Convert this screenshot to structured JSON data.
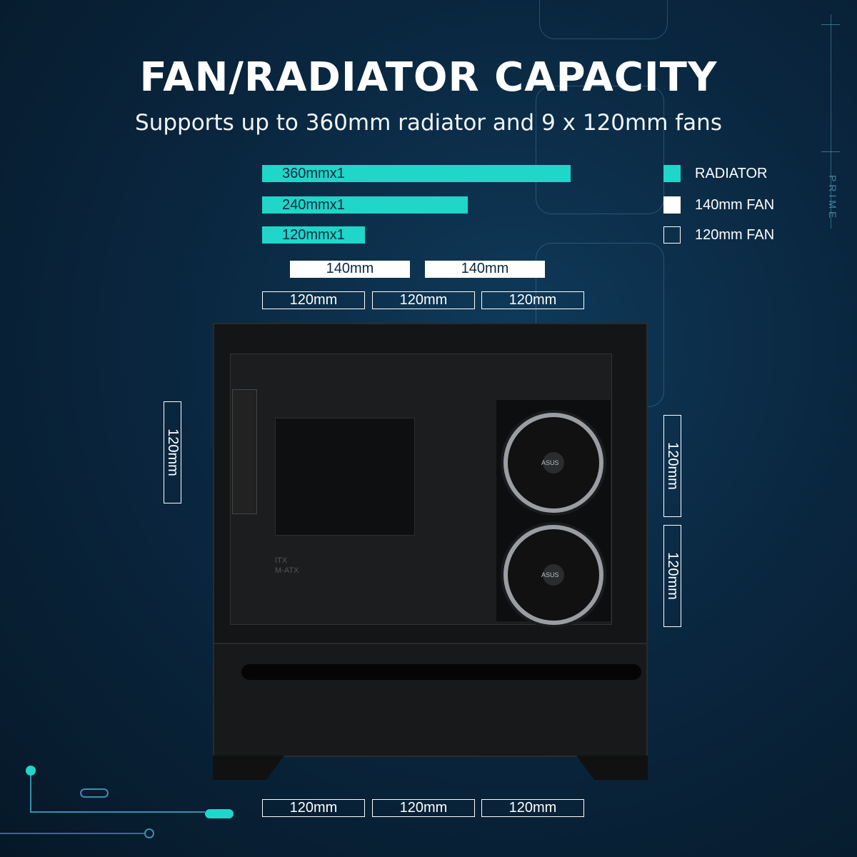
{
  "title": "FAN/RADIATOR CAPACITY",
  "subtitle": "Supports up to 360mm radiator and 9 x 120mm fans",
  "brand_mark": "PRIME",
  "radiators": [
    "360mmx1",
    "240mmx1",
    "120mmx1"
  ],
  "fans_140_top": [
    "140mm",
    "140mm"
  ],
  "fans_120_top": [
    "120mm",
    "120mm",
    "120mm"
  ],
  "fans_120_rear": [
    "120mm"
  ],
  "fans_120_side": [
    "120mm",
    "120mm"
  ],
  "fans_120_bottom": [
    "120mm",
    "120mm",
    "120mm"
  ],
  "legend": [
    {
      "label": "RADIATOR",
      "color": "#1fd6c8"
    },
    {
      "label": "140mm FAN",
      "color": "#ffffff"
    },
    {
      "label": "120mm FAN",
      "color": "outline"
    }
  ],
  "case_labels": {
    "line1": "ITX",
    "line2": "M-ATX",
    "fan_logo": "ASUS"
  }
}
